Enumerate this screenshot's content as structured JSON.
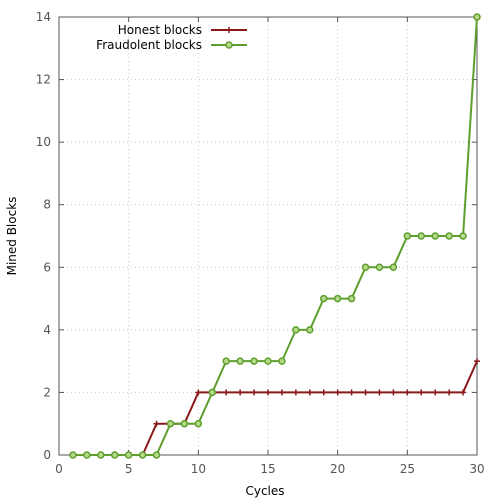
{
  "chart_data": {
    "type": "line",
    "xlabel": "Cycles",
    "ylabel": "Mined Blocks",
    "xlim": [
      0,
      30
    ],
    "ylim": [
      0,
      14
    ],
    "xticks": [
      0,
      5,
      10,
      15,
      20,
      25,
      30
    ],
    "yticks": [
      0,
      2,
      4,
      6,
      8,
      10,
      12,
      14
    ],
    "grid": true,
    "legend_position": "top-left",
    "x": [
      1,
      2,
      3,
      4,
      5,
      6,
      7,
      8,
      9,
      10,
      11,
      12,
      13,
      14,
      15,
      16,
      17,
      18,
      19,
      20,
      21,
      22,
      23,
      24,
      25,
      26,
      27,
      28,
      29,
      30
    ],
    "series": [
      {
        "name": "Honest blocks",
        "color": "#8b1a1a",
        "marker": "plus",
        "values": [
          0,
          0,
          0,
          0,
          0,
          0,
          1,
          1,
          1,
          2,
          2,
          2,
          2,
          2,
          2,
          2,
          2,
          2,
          2,
          2,
          2,
          2,
          2,
          2,
          2,
          2,
          2,
          2,
          2,
          3
        ]
      },
      {
        "name": "Fraudolent blocks",
        "color": "#5d9e2d",
        "marker": "circle",
        "values": [
          0,
          0,
          0,
          0,
          0,
          0,
          0,
          1,
          1,
          1,
          2,
          3,
          3,
          3,
          3,
          3,
          4,
          4,
          5,
          5,
          5,
          6,
          6,
          6,
          7,
          7,
          7,
          7,
          7,
          14
        ]
      }
    ]
  }
}
